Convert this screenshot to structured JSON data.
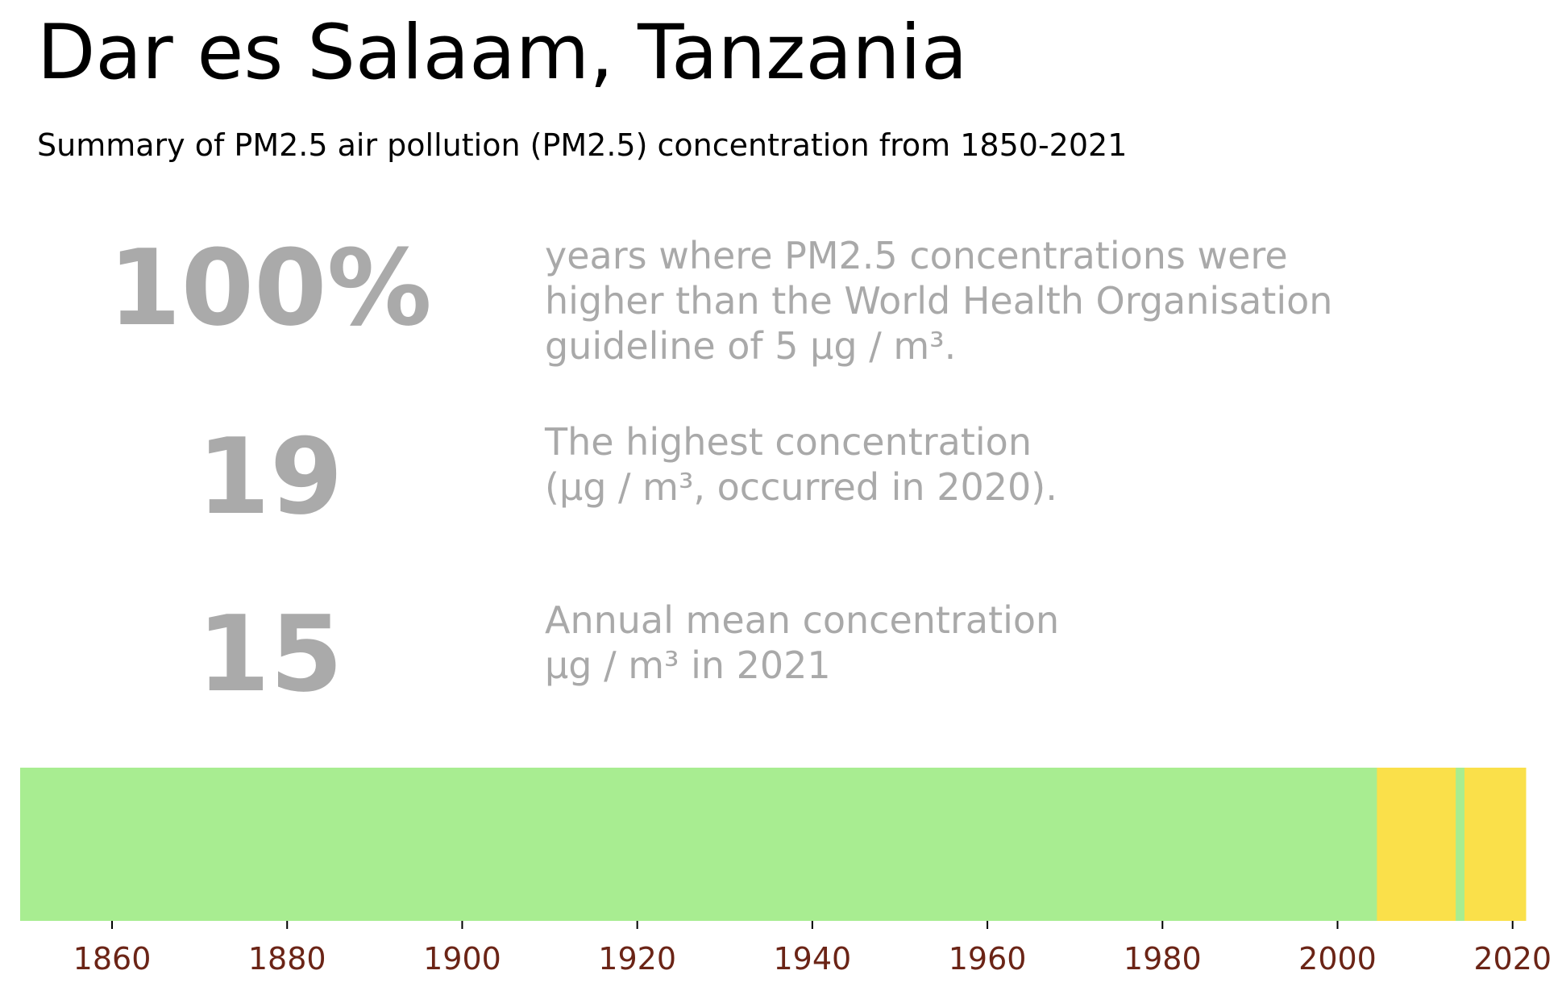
{
  "header": {
    "title": "Dar es Salaam, Tanzania",
    "subtitle": "Summary of PM2.5 air pollution (PM2.5) concentration from 1850-2021"
  },
  "stats": [
    {
      "value": "100%",
      "lines": [
        "years where PM2.5 concentrations were",
        "higher than the World Health Organisation",
        "guideline of 5 μg / m³."
      ]
    },
    {
      "value": "19",
      "lines": [
        "The highest concentration",
        "(μg / m³, occurred in 2020)."
      ]
    },
    {
      "value": "15",
      "lines": [
        "Annual mean concentration",
        "μg / m³ in 2021"
      ]
    }
  ],
  "colors": {
    "low": "#a8ed91",
    "mid": "#fae04a",
    "stat_number": "#aaaaaa",
    "stat_text": "#a9a9a9",
    "tick_label": "#6b2416"
  },
  "chart_data": {
    "type": "heatmap",
    "title": "",
    "xlabel": "",
    "ylabel": "",
    "xlim": [
      1849.5,
      2021.5
    ],
    "x_ticks": [
      1860,
      1880,
      1900,
      1920,
      1940,
      1960,
      1980,
      2000,
      2020
    ],
    "bands": [
      {
        "start": 1850,
        "end": 2004,
        "category": "low"
      },
      {
        "start": 2005,
        "end": 2013,
        "category": "mid"
      },
      {
        "start": 2014,
        "end": 2014,
        "category": "low"
      },
      {
        "start": 2015,
        "end": 2021,
        "category": "mid"
      }
    ]
  }
}
